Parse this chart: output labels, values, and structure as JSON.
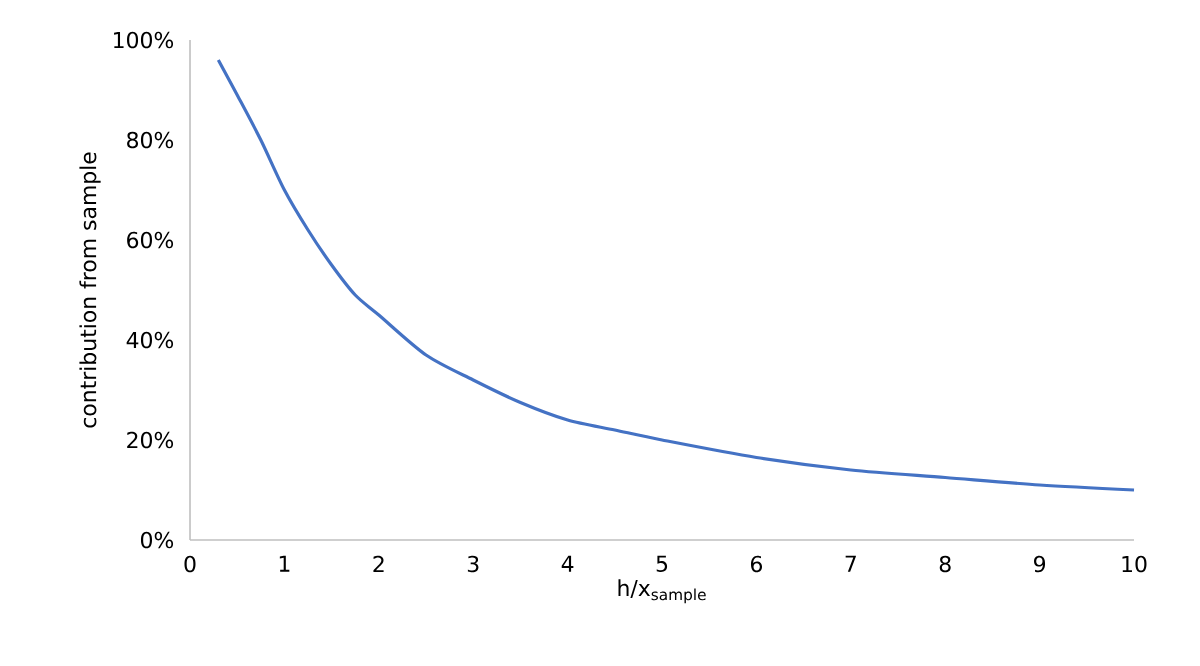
{
  "chart_data": {
    "type": "line",
    "xlabel": "h/x$_{sample}$",
    "ylabel": "contribution from sample",
    "x": [
      0.3,
      0.5,
      0.75,
      1,
      1.25,
      1.5,
      1.75,
      2,
      2.5,
      3,
      3.5,
      4,
      4.5,
      5,
      6,
      7,
      8,
      9,
      10
    ],
    "series": [
      {
        "color": "#4472c4",
        "values": [
          96,
          89,
          80,
          70,
          62,
          55,
          49,
          45,
          37,
          32,
          27.5,
          24,
          22,
          20,
          16.5,
          14,
          12.5,
          11,
          10
        ]
      }
    ],
    "xlim": [
      0,
      10
    ],
    "xticks": [
      0,
      1,
      2,
      3,
      4,
      5,
      6,
      7,
      8,
      9,
      10
    ],
    "ylim": [
      0,
      100
    ],
    "yticks": [
      {
        "value": 0,
        "label": "0%"
      },
      {
        "value": 20,
        "label": "20%"
      },
      {
        "value": 40,
        "label": "40%"
      },
      {
        "value": 60,
        "label": "60%"
      },
      {
        "value": 80,
        "label": "80%"
      },
      {
        "value": 100,
        "label": "100%"
      }
    ],
    "grid": false,
    "marker": "none",
    "line_style": "solid"
  }
}
